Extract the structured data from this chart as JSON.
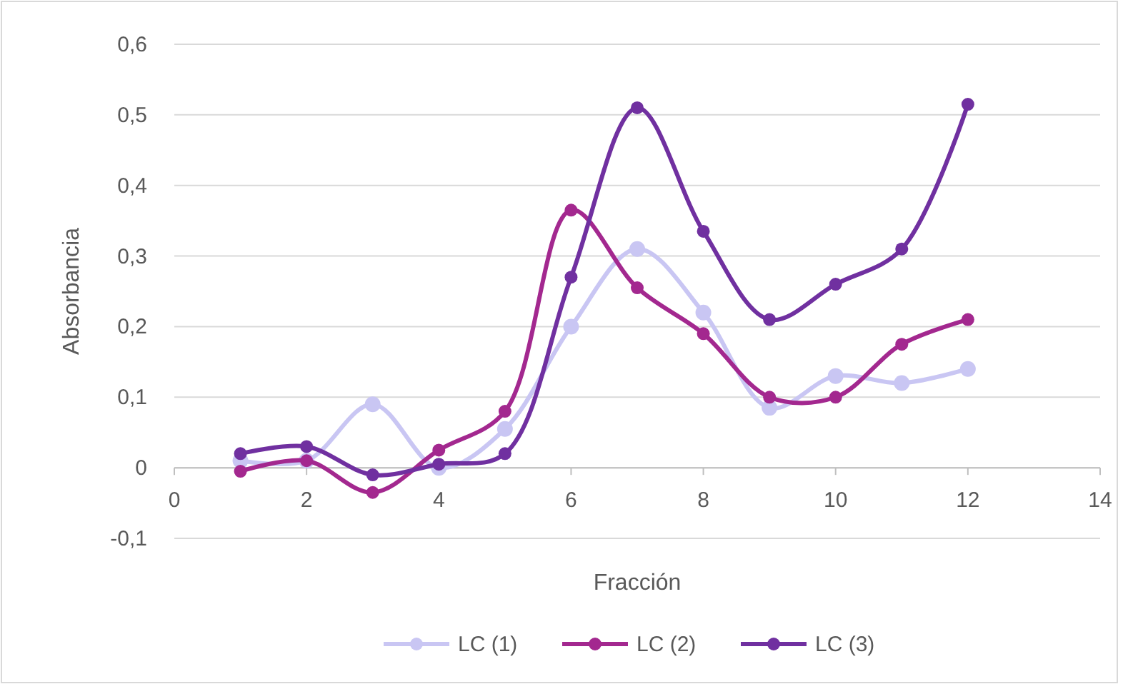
{
  "chart_data": {
    "type": "line",
    "xlabel": "Fracción",
    "ylabel": "Absorbancia",
    "x": [
      1,
      2,
      3,
      4,
      5,
      6,
      7,
      8,
      9,
      10,
      11,
      12
    ],
    "series": [
      {
        "name": "LC (1)",
        "color": "#c9c6f3",
        "values": [
          0.01,
          0.01,
          0.09,
          0.0,
          0.055,
          0.2,
          0.31,
          0.22,
          0.085,
          0.13,
          0.12,
          0.14
        ]
      },
      {
        "name": "LC (2)",
        "color": "#a3288f",
        "values": [
          -0.005,
          0.01,
          -0.035,
          0.025,
          0.08,
          0.365,
          0.255,
          0.19,
          0.1,
          0.1,
          0.175,
          0.21
        ]
      },
      {
        "name": "LC (3)",
        "color": "#7030a0",
        "values": [
          0.02,
          0.03,
          -0.01,
          0.005,
          0.02,
          0.27,
          0.51,
          0.335,
          0.21,
          0.26,
          0.31,
          0.515
        ]
      }
    ],
    "xlim": [
      0,
      14
    ],
    "xticks": [
      0,
      2,
      4,
      6,
      8,
      10,
      12,
      14
    ],
    "ylim": [
      -0.1,
      0.6
    ],
    "yticks": [
      {
        "value": -0.1,
        "label": "-0,1"
      },
      0,
      {
        "value": 0.1,
        "label": "0,1"
      },
      {
        "value": 0.2,
        "label": "0,2"
      },
      {
        "value": 0.3,
        "label": "0,3"
      },
      {
        "value": 0.4,
        "label": "0,4"
      },
      {
        "value": 0.5,
        "label": "0,5"
      },
      {
        "value": 0.6,
        "label": "0,6"
      }
    ],
    "grid": "y",
    "legend": "bottom",
    "marker": "circle",
    "line_style": "solid"
  }
}
